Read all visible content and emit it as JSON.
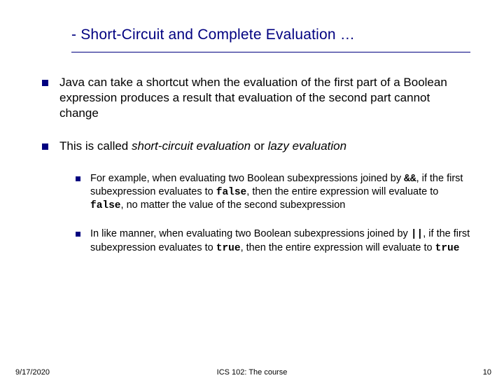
{
  "title": "- Short-Circuit and Complete Evaluation …",
  "colors": {
    "title_color": "#000080",
    "bullet_color": "#000080",
    "text_color": "#000000",
    "background": "#ffffff"
  },
  "typography": {
    "title_fontsize": 21,
    "l1_fontsize": 17,
    "l2_fontsize": 14.5,
    "footer_fontsize": 11
  },
  "bullets_l1": [
    {
      "text": "Java can take a shortcut when the evaluation of the first part of a  Boolean expression produces a result that evaluation of the second part cannot change"
    },
    {
      "prefix": "This is called ",
      "italic1": "short-circuit evaluation",
      "mid": " or ",
      "italic2": "lazy evaluation"
    }
  ],
  "bullets_l2": [
    {
      "t1": "For example, when evaluating two Boolean subexpressions joined by ",
      "c1": "&&",
      "t2": ", if the first subexpression evaluates to ",
      "c2": "false",
      "t3": ", then the entire expression will evaluate to ",
      "c3": "false",
      "t4": ", no matter the value of the second subexpression"
    },
    {
      "t1": "In like manner, when evaluating two Boolean subexpressions joined by ",
      "c1": "||",
      "t2": ", if the first subexpression evaluates to ",
      "c2": "true",
      "t3": ", then the entire expression will evaluate to ",
      "c3": "true",
      "t4": ""
    }
  ],
  "footer": {
    "date": "9/17/2020",
    "course": "ICS 102: The course",
    "page": "10"
  }
}
